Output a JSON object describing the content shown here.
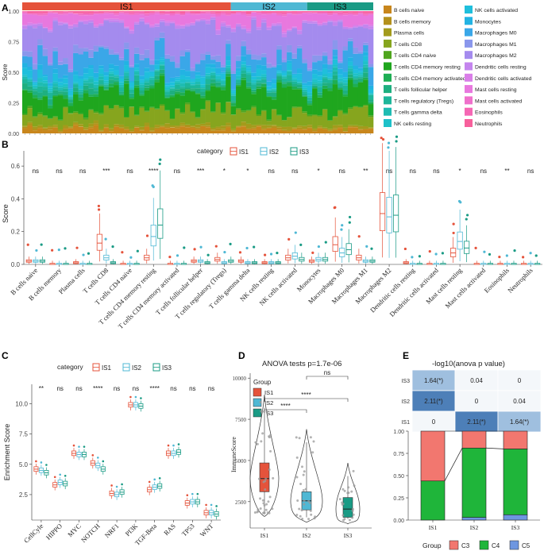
{
  "panel_labels": [
    "A",
    "B",
    "C",
    "D",
    "E"
  ],
  "colors": {
    "IS1": "#e5533b",
    "IS2": "#4fb8d4",
    "IS3": "#1a9b85",
    "C3": "#f2776f",
    "C4": "#1fb53a",
    "C5": "#6e96e0",
    "heat_high": "#4d7fb8",
    "heat_mid": "#9fbfdf",
    "heat_low": "#f4f7fa"
  },
  "chart_data": [
    {
      "id": "A",
      "type": "area",
      "subtype": "stacked-bar-100",
      "ylabel": "Score",
      "yticks": [
        "0.00",
        "0.25",
        "0.50",
        "0.75",
        "1.00"
      ],
      "ylim": [
        0,
        1
      ],
      "groups": [
        {
          "name": "IS1",
          "color": "#e5533b",
          "n": 41
        },
        {
          "name": "IS2",
          "color": "#4fb8d4",
          "n": 15
        },
        {
          "name": "IS3",
          "color": "#1a9b85",
          "n": 13
        }
      ],
      "legend": [
        {
          "label": "B cells naive",
          "color": "#c8861c"
        },
        {
          "label": "B cells memory",
          "color": "#b4911c"
        },
        {
          "label": "Plasma cells",
          "color": "#a39b1c"
        },
        {
          "label": "T cells CD8",
          "color": "#86a51e"
        },
        {
          "label": "T cells CD4 naive",
          "color": "#4fa51e"
        },
        {
          "label": "T cells CD4 memory resting",
          "color": "#1fa61e"
        },
        {
          "label": "T cells CD4 memory activated",
          "color": "#1eae54"
        },
        {
          "label": "T cells follicular helper",
          "color": "#1eaf80"
        },
        {
          "label": "T cells regulatory (Tregs)",
          "color": "#1db69a"
        },
        {
          "label": "T cells gamma delta",
          "color": "#1ebcb2"
        },
        {
          "label": "NK cells resting",
          "color": "#1ec1c9"
        },
        {
          "label": "NK cells activated",
          "color": "#1fbfdc"
        },
        {
          "label": "Monocytes",
          "color": "#22b3e3"
        },
        {
          "label": "Macrophages M0",
          "color": "#3aa7e8"
        },
        {
          "label": "Macrophages M1",
          "color": "#8a97ec"
        },
        {
          "label": "Macrophages M2",
          "color": "#a48bee"
        },
        {
          "label": "Dendritic cells resting",
          "color": "#c485ee"
        },
        {
          "label": "Dendritic cells activated",
          "color": "#d97ee8"
        },
        {
          "label": "Mast cells resting",
          "color": "#e878de"
        },
        {
          "label": "Mast cells activated",
          "color": "#ef70cb"
        },
        {
          "label": "Eosinophils",
          "color": "#f567b4"
        },
        {
          "label": "Neutrophils",
          "color": "#f7609c"
        }
      ],
      "mean_fractions": [
        0.04,
        0.01,
        0.02,
        0.12,
        0.01,
        0.18,
        0.02,
        0.03,
        0.03,
        0.02,
        0.02,
        0.04,
        0.03,
        0.12,
        0.04,
        0.26,
        0.02,
        0.01,
        0.08,
        0.01,
        0.01,
        0.01
      ]
    },
    {
      "id": "B",
      "type": "bar",
      "subtype": "grouped-boxplot",
      "ylabel": "Score",
      "yticks": [
        "0.0",
        "0.2",
        "0.4",
        "0.6"
      ],
      "ylim": [
        0,
        0.62
      ],
      "legend_title": "category",
      "series": [
        "IS1",
        "IS2",
        "IS3"
      ],
      "categories": [
        "B cells naive",
        "B cells memory",
        "Plasma cells",
        "T cells CD8",
        "T cells CD4 naive",
        "T cells CD4 memory resting",
        "T cells CD4 memory activated",
        "T cells follicular helper",
        "T cells regulatory (Tregs)",
        "T cells gamma delta",
        "NK cells resting",
        "NK cells activated",
        "Monocytes",
        "Macrophages M0",
        "Macrophages M1",
        "Macrophages M2",
        "Dendritic cells resting",
        "Dendritic cells activated",
        "Mast cells resting",
        "Mast cells activated",
        "Eosinophils",
        "Neutrophils"
      ],
      "significance": [
        "ns",
        "ns",
        "ns",
        "***",
        "ns",
        "****",
        "ns",
        "***",
        "*",
        "*",
        "ns",
        "ns",
        "*",
        "ns",
        "**",
        "ns",
        "ns",
        "ns",
        "*",
        "ns",
        "**",
        "ns"
      ],
      "medians": [
        [
          0.02,
          0.02,
          0.02
        ],
        [
          0.0,
          0.0,
          0.0
        ],
        [
          0.01,
          0.0,
          0.0
        ],
        [
          0.13,
          0.04,
          0.01
        ],
        [
          0.0,
          0.0,
          0.0
        ],
        [
          0.04,
          0.17,
          0.24
        ],
        [
          0.0,
          0.0,
          0.0
        ],
        [
          0.02,
          0.02,
          0.01
        ],
        [
          0.03,
          0.01,
          0.02
        ],
        [
          0.02,
          0.01,
          0.01
        ],
        [
          0.01,
          0.01,
          0.01
        ],
        [
          0.04,
          0.05,
          0.03
        ],
        [
          0.02,
          0.03,
          0.03
        ],
        [
          0.12,
          0.07,
          0.09
        ],
        [
          0.04,
          0.02,
          0.02
        ],
        [
          0.31,
          0.29,
          0.3
        ],
        [
          0.01,
          0.0,
          0.0
        ],
        [
          0.0,
          0.0,
          0.0
        ],
        [
          0.07,
          0.14,
          0.1
        ],
        [
          0.0,
          0.0,
          0.0
        ],
        [
          0.0,
          0.0,
          0.0
        ],
        [
          0.0,
          0.0,
          0.0
        ]
      ]
    },
    {
      "id": "C",
      "type": "bar",
      "subtype": "grouped-boxplot",
      "ylabel": "Enrichment Score",
      "yticks": [
        "2.5",
        "5.0",
        "7.5",
        "10.0"
      ],
      "ylim": [
        0.4,
        11.6
      ],
      "legend_title": "category",
      "series": [
        "IS1",
        "IS2",
        "IS3"
      ],
      "categories": [
        "CellCyle",
        "HIPPO",
        "MYC",
        "NOTCH",
        "NRF1",
        "PI3K",
        "TGF-Beta",
        "RAS",
        "TP53",
        "WNT"
      ],
      "significance": [
        "**",
        "ns",
        "ns",
        "****",
        "ns",
        "ns",
        "****",
        "ns",
        "ns",
        "ns"
      ],
      "medians": [
        [
          4.6,
          4.5,
          4.3
        ],
        [
          3.3,
          3.5,
          3.4
        ],
        [
          5.9,
          5.8,
          5.8
        ],
        [
          5.1,
          4.9,
          4.6
        ],
        [
          2.6,
          2.5,
          2.7
        ],
        [
          9.9,
          9.9,
          9.8
        ],
        [
          2.9,
          3.1,
          3.2
        ],
        [
          5.9,
          5.9,
          6.0
        ],
        [
          1.8,
          1.9,
          1.9
        ],
        [
          1.0,
          1.0,
          0.9
        ]
      ]
    },
    {
      "id": "D",
      "type": "scatter",
      "subtype": "violin-box",
      "title": "ANOVA tests p=1.7e-06",
      "ylabel": "ImmuneScore",
      "yticks": [
        "2500",
        "5000",
        "7500",
        "10000"
      ],
      "ylim": [
        900,
        10300
      ],
      "legend_title": "Group",
      "categories": [
        "IS1",
        "IS2",
        "IS3"
      ],
      "medians": [
        3900,
        2550,
        2050
      ],
      "q1": [
        3100,
        2000,
        1550
      ],
      "q3": [
        4850,
        3100,
        2750
      ],
      "comparisons": [
        {
          "pair": [
            "IS1",
            "IS3"
          ],
          "label": "****"
        },
        {
          "pair": [
            "IS2",
            "IS3"
          ],
          "label": "ns"
        },
        {
          "pair": [
            "IS1",
            "IS2"
          ],
          "label": "****"
        }
      ]
    },
    {
      "id": "E",
      "type": "heatmap",
      "title": "-log10(anova p value)",
      "rows": [
        "IS3",
        "IS2",
        "IS1"
      ],
      "cols": [
        "IS1",
        "IS2",
        "IS3"
      ],
      "cells": [
        [
          "1.64(*)",
          "0.04",
          "0"
        ],
        [
          "2.11(*)",
          "0",
          "0.04"
        ],
        [
          "0",
          "2.11(*)",
          "1.64(*)"
        ]
      ],
      "values": [
        [
          1.64,
          0.04,
          0
        ],
        [
          2.11,
          0,
          0.04
        ],
        [
          0,
          2.11,
          1.64
        ]
      ]
    },
    {
      "id": "E-bottom",
      "type": "bar",
      "subtype": "stacked-100",
      "categories": [
        "IS1",
        "IS2",
        "IS3"
      ],
      "yticks": [
        "0.00",
        "0.25",
        "0.50",
        "0.75",
        "1.00"
      ],
      "ylim": [
        0,
        1
      ],
      "legend_title": "Group",
      "series": [
        {
          "name": "C5",
          "values": [
            0.0,
            0.03,
            0.06
          ]
        },
        {
          "name": "C4",
          "values": [
            0.44,
            0.78,
            0.74
          ]
        },
        {
          "name": "C3",
          "values": [
            0.56,
            0.19,
            0.2
          ]
        }
      ]
    }
  ]
}
